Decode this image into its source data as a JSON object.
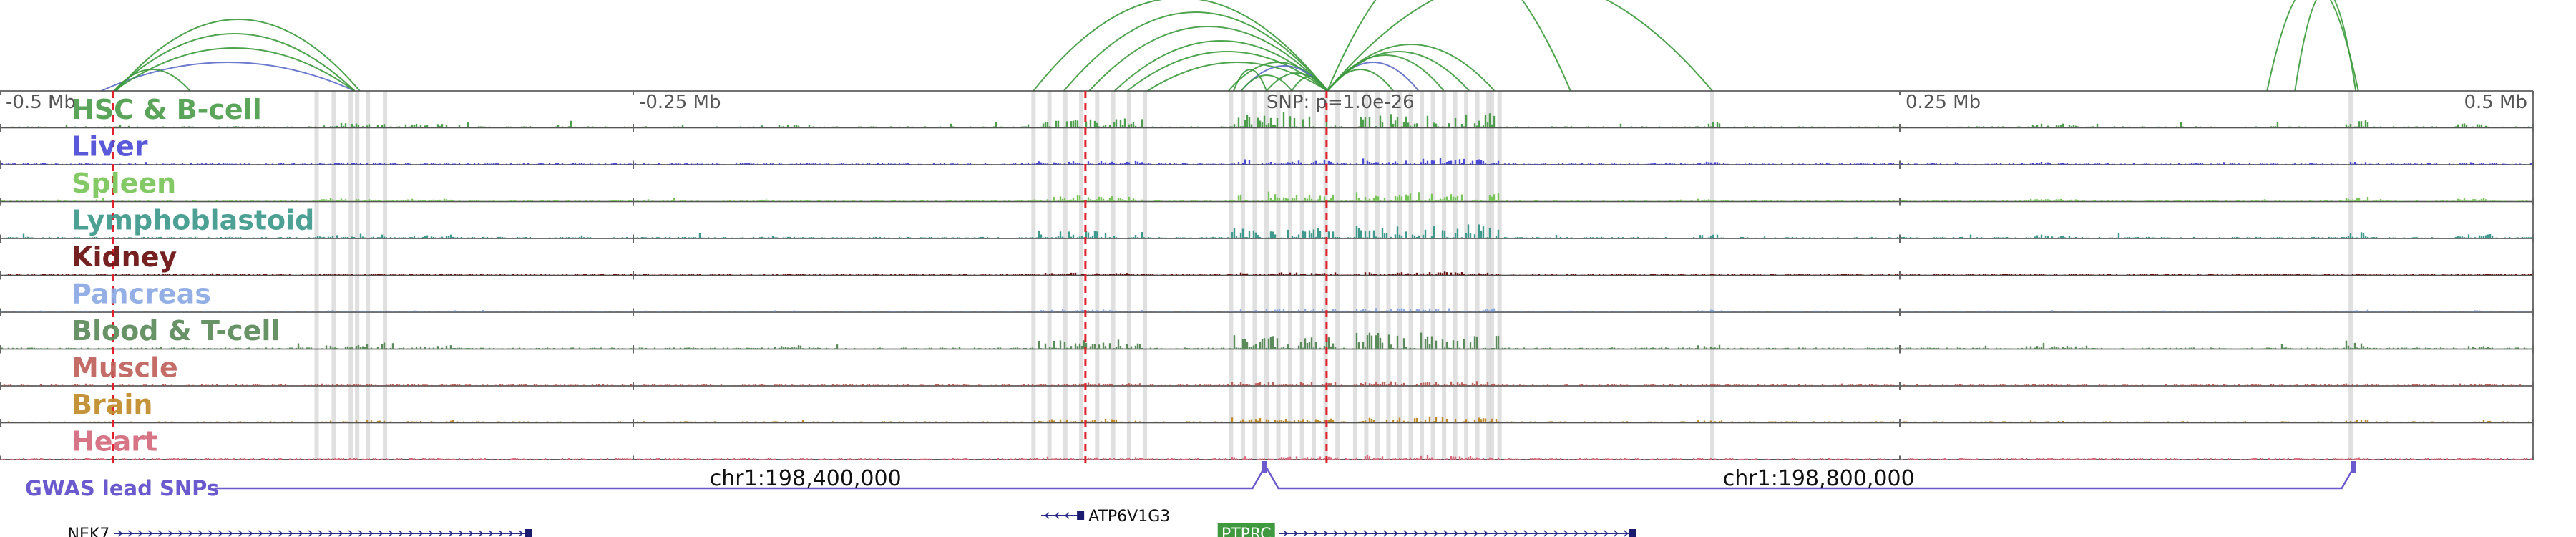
{
  "region": {
    "ticks": [
      {
        "label": "-0.5 Mb",
        "pos": 0.0
      },
      {
        "label": "-0.25 Mb",
        "pos": 0.25
      },
      {
        "label": "0.25 Mb",
        "pos": 0.75
      },
      {
        "label": "0.5 Mb",
        "pos": 1.0
      }
    ],
    "snp_label": "SNP: p=1.0e-26",
    "snp_pos": 0.5237,
    "coord_labels": [
      {
        "text": "chr1:198,400,000",
        "pos": 0.318
      },
      {
        "text": "chr1:198,800,000",
        "pos": 0.718
      }
    ]
  },
  "tracks": [
    {
      "name": "HSC & B-cell",
      "color": "#4d9e4d"
    },
    {
      "name": "Liver",
      "color": "#4b4bd6"
    },
    {
      "name": "Spleen",
      "color": "#79c55a"
    },
    {
      "name": "Lymphoblastoid",
      "color": "#3e9a8c"
    },
    {
      "name": "Kidney",
      "color": "#6b0f0f"
    },
    {
      "name": "Pancreas",
      "color": "#8aa9e3"
    },
    {
      "name": "Blood & T-cell",
      "color": "#5b8a5b"
    },
    {
      "name": "Muscle",
      "color": "#c0605b"
    },
    {
      "name": "Brain",
      "color": "#c08a2a"
    },
    {
      "name": "Heart",
      "color": "#d46a7c"
    }
  ],
  "gwas": {
    "label": "GWAS lead SNPs",
    "color": "#6a5acd",
    "snps": [
      0.499,
      0.929
    ]
  },
  "genes": [
    {
      "name": "NEK7",
      "start": 0.045,
      "end": 0.21,
      "strand": "+",
      "label_side": "left",
      "boxed": false
    },
    {
      "name": "ATP6V1G3",
      "start": 0.411,
      "end": 0.428,
      "strand": "-",
      "label_side": "right",
      "boxed": false
    },
    {
      "name": "PTPRC",
      "start": 0.505,
      "end": 0.646,
      "strand": "+",
      "label_side": "boxed",
      "boxed": true,
      "box_color": "#3f9a3f"
    }
  ],
  "marker_lines": [
    0.0445,
    0.4285,
    0.5237
  ],
  "marker_color": "#e0202b",
  "highlight_color": "#d6d6d6",
  "arc_colors": {
    "green": "#3c9a3c",
    "blue": "#5c6cc8"
  }
}
